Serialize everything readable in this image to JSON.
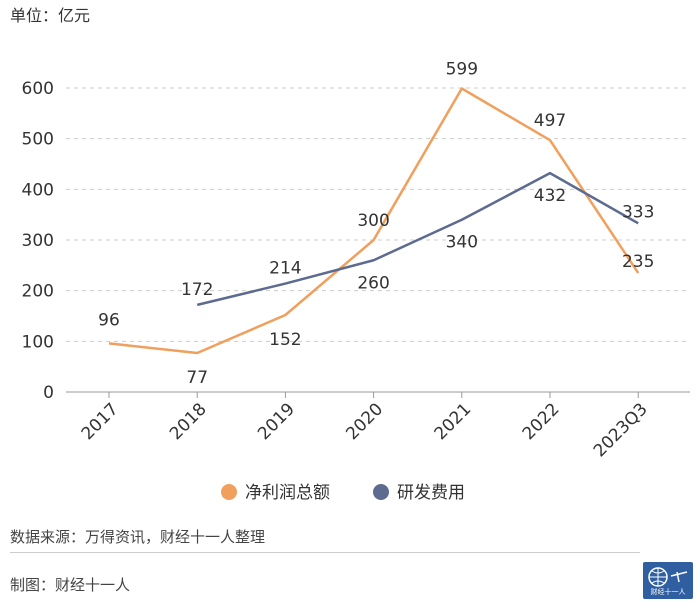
{
  "unit_label": "单位：亿元",
  "source_note": "数据来源：万得资讯，财经十一人整理",
  "author_note": "制图：财经十一人",
  "logo": {
    "text": "财经十一人"
  },
  "chart_data": {
    "type": "line",
    "title": "",
    "xlabel": "",
    "ylabel": "亿元",
    "ylim": [
      0,
      600
    ],
    "yticks": [
      0,
      100,
      200,
      300,
      400,
      500,
      600
    ],
    "grid": true,
    "legend_position": "bottom-center",
    "categories": [
      "2017",
      "2018",
      "2019",
      "2020",
      "2021",
      "2022",
      "2023Q3"
    ],
    "series": [
      {
        "name": "净利润总额",
        "color": "#f0a05c",
        "values": [
          96,
          77,
          152,
          300,
          599,
          497,
          235
        ]
      },
      {
        "name": "研发费用",
        "color": "#5c6b8f",
        "values": [
          null,
          172,
          214,
          260,
          340,
          432,
          333
        ]
      }
    ]
  }
}
